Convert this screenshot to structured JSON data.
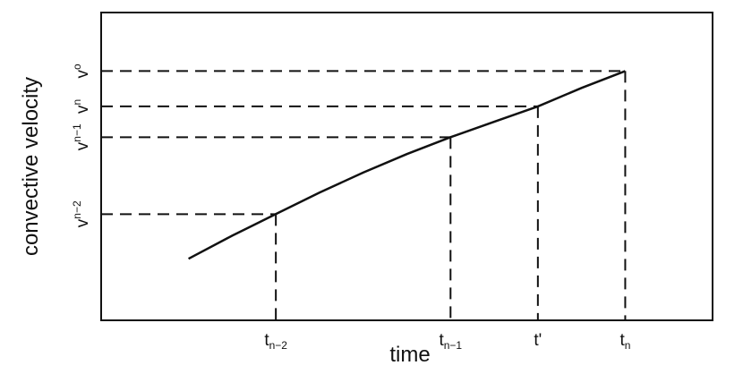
{
  "chart_data": {
    "type": "line",
    "xlabel": "time",
    "ylabel": "convective velocity",
    "x_ticks": [
      {
        "base": "t",
        "sub": "n−2"
      },
      {
        "base": "t",
        "sub": "n−1"
      },
      {
        "base": "t'",
        "sub": ""
      },
      {
        "base": "t",
        "sub": "n"
      }
    ],
    "y_ticks": [
      {
        "base": "v",
        "sup": "n−2",
        "sub": ""
      },
      {
        "base": "v",
        "sup": "n−1",
        "sub": ""
      },
      {
        "base": "v",
        "sup": "",
        "sub": "n"
      },
      {
        "base": "v",
        "sup": "",
        "sub": "o"
      }
    ],
    "xlim": [
      0,
      7
    ],
    "ylim": [
      0,
      10
    ],
    "series": [
      {
        "x": [
          1.0,
          1.5,
          2.0,
          2.5,
          3.0,
          3.5,
          4.0,
          4.5,
          5.0,
          5.5,
          6.0
        ],
        "y": [
          2.0,
          2.75,
          3.45,
          4.15,
          4.8,
          5.4,
          5.95,
          6.45,
          6.95,
          7.55,
          8.1
        ]
      }
    ],
    "guides": [
      {
        "x": 2.0,
        "y": 3.45
      },
      {
        "x": 4.0,
        "y": 5.95
      },
      {
        "x": 5.0,
        "y": 6.95
      },
      {
        "x": 6.0,
        "y": 8.1
      }
    ],
    "grid": false,
    "legend": "none",
    "line_color": "#111111",
    "axis_color": "#111111"
  }
}
